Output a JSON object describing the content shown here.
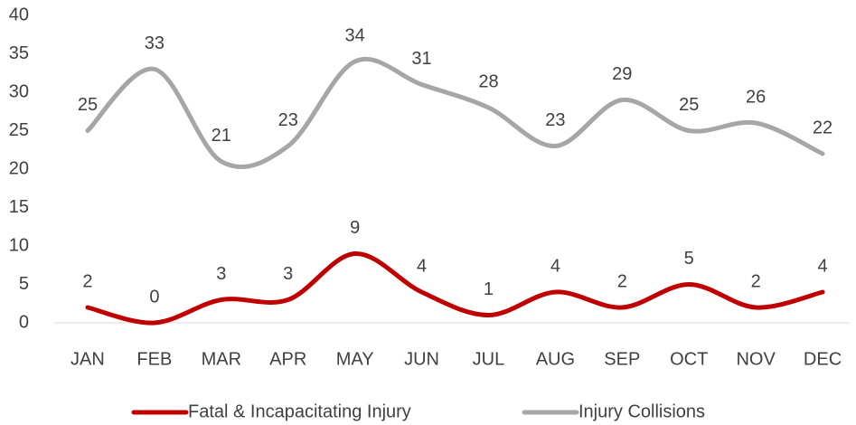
{
  "chart_data": {
    "type": "line",
    "categories": [
      "JAN",
      "FEB",
      "MAR",
      "APR",
      "MAY",
      "JUN",
      "JUL",
      "AUG",
      "SEP",
      "OCT",
      "NOV",
      "DEC"
    ],
    "series": [
      {
        "name": "Fatal & Incapacitating Injury",
        "color": "#c00000",
        "values": [
          2,
          0,
          3,
          3,
          9,
          4,
          1,
          4,
          2,
          5,
          2,
          4
        ]
      },
      {
        "name": "Injury Collisions",
        "color": "#a6a6a6",
        "values": [
          25,
          33,
          21,
          23,
          34,
          31,
          28,
          23,
          29,
          25,
          26,
          22
        ]
      }
    ],
    "ylim": [
      0,
      40
    ],
    "yticks": [
      0,
      5,
      10,
      15,
      20,
      25,
      30,
      35,
      40
    ],
    "smooth": true,
    "data_labels": true,
    "legend": "bottom"
  }
}
